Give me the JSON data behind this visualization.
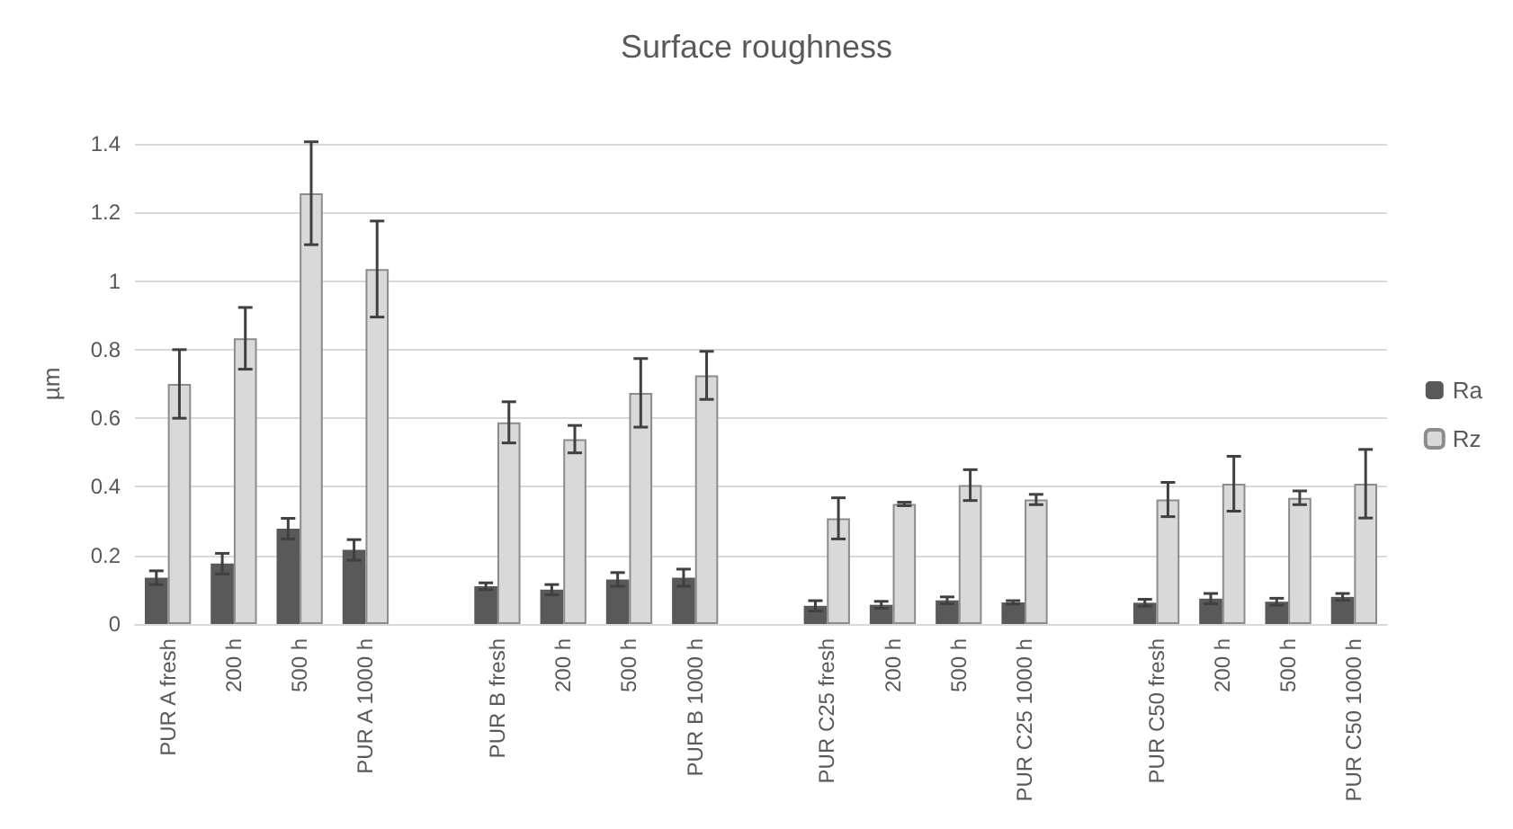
{
  "chart_data": {
    "type": "bar",
    "title": "Surface roughness",
    "ylabel": "µm",
    "categories": [
      "PUR A fresh",
      "200 h",
      "500 h",
      "PUR A 1000 h",
      null,
      "PUR B fresh",
      "200 h",
      "500 h",
      "PUR B 1000 h",
      null,
      "PUR C25 fresh",
      "200 h",
      "500 h",
      "PUR C25 1000 h",
      null,
      "PUR C50 fresh",
      "200 h",
      "500 h",
      "PUR C50 1000 h"
    ],
    "series": [
      {
        "name": "Ra",
        "color": "#595959",
        "values": [
          0.135,
          0.176,
          0.278,
          0.216,
          null,
          0.11,
          0.1,
          0.13,
          0.135,
          null,
          0.053,
          0.056,
          0.069,
          0.063,
          null,
          0.062,
          0.074,
          0.065,
          0.079
        ],
        "errors": [
          0.02,
          0.03,
          0.03,
          0.03,
          null,
          0.01,
          0.015,
          0.02,
          0.025,
          null,
          0.015,
          0.01,
          0.01,
          0.005,
          null,
          0.01,
          0.015,
          0.01,
          0.01
        ]
      },
      {
        "name": "Rz",
        "color": "#d9d9d9",
        "values": [
          0.7,
          0.833,
          1.256,
          1.035,
          null,
          0.588,
          0.539,
          0.674,
          0.725,
          null,
          0.308,
          0.35,
          0.405,
          0.363,
          null,
          0.363,
          0.409,
          0.368,
          0.409
        ],
        "errors": [
          0.1,
          0.09,
          0.15,
          0.14,
          null,
          0.06,
          0.04,
          0.1,
          0.07,
          null,
          0.06,
          0.005,
          0.045,
          0.015,
          null,
          0.05,
          0.08,
          0.02,
          0.1
        ]
      }
    ],
    "ylim": [
      0,
      1.4
    ],
    "yticks": [
      0,
      0.2,
      0.4,
      0.6,
      0.8,
      1,
      1.2,
      1.4
    ],
    "grid": "y",
    "legend": "right"
  }
}
